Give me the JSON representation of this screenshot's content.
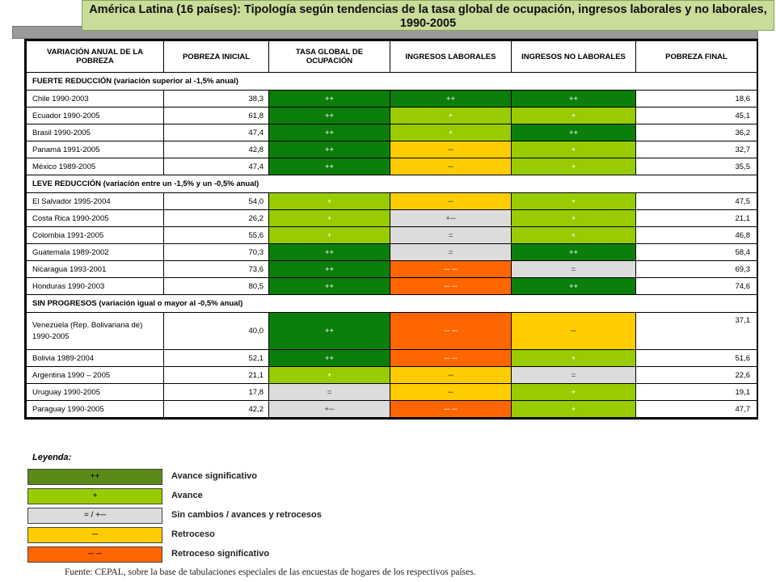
{
  "title": "América Latina (16 países): Tipología según tendencias de la tasa global de ocupación, ingresos laborales y  no laborales, 1990-2005",
  "headers": [
    "VARIACIÓN ANUAL DE LA POBREZA",
    "POBREZA INICIAL",
    "TASA GLOBAL DE OCUPACIÓN",
    "INGRESOS LABORALES",
    "INGRESOS NO LABORALES",
    "POBREZA FINAL"
  ],
  "sections": [
    {
      "label": "FUERTE REDUCCIÓN (variación superior al -1,5% anual)",
      "rows": [
        {
          "country": "Chile 1990-2003",
          "initial": "38,3",
          "tgo": "++",
          "labor": "++",
          "nonlabor": "++",
          "final": "18,6"
        },
        {
          "country": "Ecuador 1990-2005",
          "initial": "61,8",
          "tgo": "++",
          "labor": "+",
          "nonlabor": "+",
          "final": "45,1"
        },
        {
          "country": "Brasil 1990-2005",
          "initial": "47,4",
          "tgo": "++",
          "labor": "+",
          "nonlabor": "++",
          "final": "36,2"
        },
        {
          "country": "Panamá  1991-2005",
          "initial": "42,8",
          "tgo": "++",
          "labor": "─",
          "nonlabor": "+",
          "final": "32,7"
        },
        {
          "country": "México 1989-2005",
          "initial": "47,4",
          "tgo": "++",
          "labor": "─",
          "nonlabor": "+",
          "final": "35,5"
        }
      ]
    },
    {
      "label": "LEVE REDUCCIÓN (variación entre un -1,5% y un -0,5% anual)",
      "rows": [
        {
          "country": "El Salvador 1995-2004",
          "initial": "54,0",
          "tgo": "+",
          "labor": "─",
          "nonlabor": "+",
          "final": "47,5"
        },
        {
          "country": "Costa Rica 1990-2005",
          "initial": "26,2",
          "tgo": "+",
          "labor": "+─",
          "nonlabor": "+",
          "final": "21,1"
        },
        {
          "country": "Colombia 1991-2005",
          "initial": "55,6",
          "tgo": "+",
          "labor": "=",
          "nonlabor": "+",
          "final": "46,8"
        },
        {
          "country": "Guatemala 1989-2002",
          "initial": "70,3",
          "tgo": "++",
          "labor": "=",
          "nonlabor": "++",
          "final": "58,4"
        },
        {
          "country": "Nicaragua 1993-2001",
          "initial": "73,6",
          "tgo": "++",
          "labor": "─ ─",
          "nonlabor": "=",
          "final": "69,3"
        },
        {
          "country": "Honduras 1990-2003",
          "initial": "80,5",
          "tgo": "++",
          "labor": "─ ─",
          "nonlabor": "++",
          "final": "74,6"
        }
      ]
    },
    {
      "label": "SIN PROGRESOS (variación igual o mayor al -0,5% anual)",
      "rows": [
        {
          "country": "Venezuela (Rep. Bolivariana de)",
          "country2": "1990-2005",
          "initial": "40,0",
          "tgo": "++",
          "labor": "─ ─",
          "nonlabor": "─",
          "final": "37,1"
        },
        {
          "country": "Bolivia 1989-2004",
          "initial": "52,1",
          "tgo": "++",
          "labor": "─ ─",
          "nonlabor": "+",
          "final": "51,6"
        },
        {
          "country": "Argentina 1990 – 2005",
          "initial": "21,1",
          "tgo": "+",
          "labor": "─",
          "nonlabor": "=",
          "final": "22,6"
        },
        {
          "country": "Uruguay 1990-2005",
          "initial": "17,8",
          "tgo": "=",
          "labor": "─",
          "nonlabor": "+",
          "final": "19,1"
        },
        {
          "country": "Paraguay 1990-2005",
          "initial": "42,2",
          "tgo": "+─",
          "labor": "─ ─",
          "nonlabor": "+",
          "final": "47,7"
        }
      ]
    }
  ],
  "legend": {
    "title": "Leyenda:",
    "items": [
      {
        "symbol": "++",
        "label": "Avance significativo",
        "color": "#5c8a1a"
      },
      {
        "symbol": "+",
        "label": "Avance",
        "color": "#99cc00"
      },
      {
        "symbol": "= / +─",
        "label": "Sin cambios / avances y retrocesos",
        "color": "#dcdcdc"
      },
      {
        "symbol": "─",
        "label": "Retroceso",
        "color": "#ffcc00"
      },
      {
        "symbol": "─ ─",
        "label": "Retroceso significativo",
        "color": "#ff6600"
      }
    ]
  },
  "source": "Fuente: CEPAL, sobre la base de tabulaciones especiales de las encuestas de hogares de los respectivos países.",
  "colors": {
    "strong_advance": "#0b7e0b",
    "advance": "#99cc00",
    "no_change": "#dcdcdc",
    "setback": "#ffcc00",
    "strong_setback": "#ff6600",
    "title_bg": "#c9dc9a"
  }
}
